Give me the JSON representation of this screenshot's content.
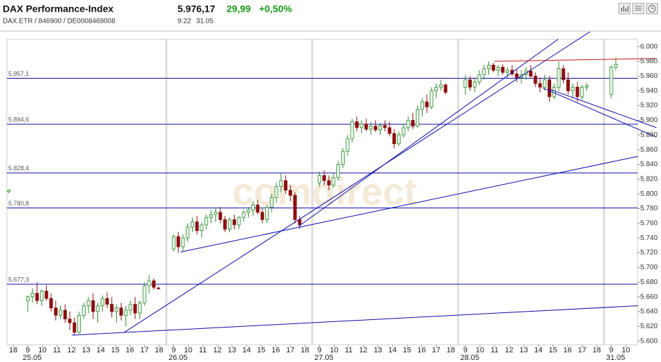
{
  "header": {
    "title": "DAX Performance-Index",
    "subtitle": "DAX.ETR / 846900 / DE0008469008",
    "price": "5.976,17",
    "change": "29,99",
    "change_pct": "+0,50%",
    "time": "9:22",
    "date": "31.05"
  },
  "chart_data": {
    "type": "candlestick",
    "watermark": "comdirect",
    "up_color": "#2e8b2e",
    "down_color": "#8b1010",
    "x": [
      -0.3,
      1.0,
      1.32,
      1.64,
      1.96,
      2.28,
      2.6,
      2.92,
      3.24,
      3.56,
      3.88,
      4.2,
      4.52,
      4.84,
      5.16,
      5.48,
      5.8,
      6.12,
      6.44,
      6.76,
      7.08,
      7.4,
      7.72,
      8.04,
      8.36,
      8.68,
      9.0,
      9.32,
      9.64,
      9.96,
      11.0,
      11.32,
      11.64,
      11.96,
      12.28,
      12.6,
      12.92,
      13.24,
      13.56,
      13.88,
      14.2,
      14.52,
      14.84,
      15.16,
      15.48,
      15.8,
      16.12,
      16.44,
      16.76,
      17.08,
      17.4,
      17.72,
      18.04,
      18.36,
      18.68,
      19.0,
      19.32,
      19.64,
      21.0,
      21.32,
      21.64,
      21.96,
      22.28,
      22.6,
      22.92,
      23.24,
      23.56,
      23.88,
      24.2,
      24.52,
      24.84,
      25.16,
      25.48,
      25.8,
      26.12,
      26.44,
      26.76,
      27.08,
      27.4,
      27.72,
      28.04,
      28.36,
      28.68,
      29.0,
      29.32,
      29.64,
      31.0,
      31.32,
      31.64,
      31.96,
      32.28,
      32.6,
      32.92,
      33.24,
      33.56,
      33.88,
      34.2,
      34.52,
      34.84,
      35.16,
      35.48,
      35.8,
      36.12,
      36.44,
      36.76,
      37.08,
      37.4,
      37.72,
      38.04,
      38.36,
      38.68,
      39.0,
      39.32,
      41.0,
      41.32
    ],
    "open": [
      5803,
      5655,
      5660,
      5665,
      5655,
      5668,
      5658,
      5645,
      5635,
      5642,
      5630,
      5625,
      5612,
      5635,
      5648,
      5655,
      5640,
      5648,
      5658,
      5650,
      5640,
      5645,
      5635,
      5642,
      5650,
      5638,
      5652,
      5675,
      5682,
      5672,
      5725,
      5742,
      5728,
      5740,
      5755,
      5762,
      5750,
      5758,
      5768,
      5772,
      5775,
      5765,
      5752,
      5765,
      5758,
      5768,
      5775,
      5778,
      5785,
      5775,
      5765,
      5782,
      5795,
      5810,
      5818,
      5805,
      5798,
      5765,
      5815,
      5825,
      5818,
      5812,
      5822,
      5840,
      5858,
      5875,
      5898,
      5890,
      5895,
      5888,
      5892,
      5887,
      5893,
      5890,
      5882,
      5868,
      5880,
      5890,
      5900,
      5892,
      5915,
      5925,
      5918,
      5940,
      5945,
      5948,
      5945,
      5955,
      5945,
      5952,
      5962,
      5970,
      5975,
      5968,
      5972,
      5965,
      5968,
      5963,
      5958,
      5962,
      5967,
      5960,
      5950,
      5945,
      5955,
      5932,
      5945,
      5970,
      5955,
      5940,
      5945,
      5932,
      5945,
      5935,
      5972
    ],
    "high": [
      5806,
      5662,
      5672,
      5680,
      5670,
      5676,
      5665,
      5655,
      5648,
      5650,
      5640,
      5632,
      5640,
      5652,
      5660,
      5665,
      5652,
      5662,
      5666,
      5660,
      5650,
      5652,
      5648,
      5655,
      5660,
      5655,
      5680,
      5690,
      5685,
      5674,
      5745,
      5748,
      5745,
      5760,
      5768,
      5770,
      5762,
      5772,
      5778,
      5780,
      5782,
      5770,
      5768,
      5772,
      5770,
      5778,
      5782,
      5790,
      5792,
      5780,
      5785,
      5800,
      5815,
      5828,
      5825,
      5812,
      5802,
      5770,
      5830,
      5832,
      5825,
      5828,
      5845,
      5862,
      5880,
      5902,
      5905,
      5900,
      5902,
      5898,
      5900,
      5896,
      5900,
      5898,
      5888,
      5885,
      5895,
      5905,
      5910,
      5920,
      5930,
      5935,
      5945,
      5950,
      5955,
      5950,
      5962,
      5960,
      5958,
      5968,
      5975,
      5980,
      5978,
      5975,
      5976,
      5972,
      5975,
      5970,
      5968,
      5972,
      5975,
      5965,
      5958,
      5962,
      5960,
      5950,
      5980,
      5975,
      5965,
      5950,
      5952,
      5948,
      5950,
      5975,
      5985
    ],
    "low": [
      5801,
      5640,
      5652,
      5650,
      5648,
      5655,
      5640,
      5628,
      5630,
      5625,
      5615,
      5608,
      5610,
      5630,
      5638,
      5630,
      5625,
      5640,
      5645,
      5632,
      5625,
      5628,
      5620,
      5635,
      5630,
      5630,
      5648,
      5665,
      5670,
      5670,
      5722,
      5720,
      5722,
      5735,
      5748,
      5745,
      5740,
      5752,
      5760,
      5762,
      5760,
      5748,
      5748,
      5752,
      5752,
      5762,
      5768,
      5770,
      5772,
      5760,
      5760,
      5775,
      5788,
      5802,
      5800,
      5790,
      5760,
      5752,
      5810,
      5812,
      5805,
      5808,
      5818,
      5835,
      5852,
      5870,
      5885,
      5882,
      5885,
      5880,
      5884,
      5880,
      5885,
      5878,
      5862,
      5865,
      5876,
      5885,
      5888,
      5890,
      5905,
      5910,
      5915,
      5930,
      5940,
      5935,
      5935,
      5940,
      5938,
      5948,
      5955,
      5962,
      5965,
      5960,
      5962,
      5958,
      5960,
      5952,
      5950,
      5955,
      5958,
      5945,
      5938,
      5940,
      5925,
      5928,
      5940,
      5950,
      5935,
      5930,
      5925,
      5928,
      5940,
      5930,
      5968
    ],
    "close": [
      5805,
      5660,
      5665,
      5655,
      5668,
      5658,
      5645,
      5635,
      5642,
      5630,
      5625,
      5612,
      5635,
      5648,
      5655,
      5640,
      5648,
      5658,
      5650,
      5640,
      5645,
      5635,
      5642,
      5650,
      5638,
      5652,
      5675,
      5682,
      5673,
      5671,
      5742,
      5728,
      5740,
      5755,
      5762,
      5750,
      5758,
      5768,
      5772,
      5775,
      5765,
      5752,
      5765,
      5758,
      5768,
      5775,
      5778,
      5785,
      5775,
      5765,
      5782,
      5795,
      5810,
      5818,
      5805,
      5798,
      5765,
      5758,
      5825,
      5818,
      5812,
      5822,
      5840,
      5858,
      5875,
      5898,
      5890,
      5895,
      5888,
      5892,
      5887,
      5893,
      5890,
      5882,
      5868,
      5880,
      5890,
      5900,
      5892,
      5915,
      5925,
      5918,
      5940,
      5945,
      5948,
      5938,
      5955,
      5945,
      5952,
      5962,
      5970,
      5975,
      5968,
      5972,
      5965,
      5968,
      5963,
      5958,
      5962,
      5967,
      5960,
      5950,
      5945,
      5955,
      5932,
      5945,
      5970,
      5955,
      5940,
      5945,
      5932,
      5945,
      5947,
      5972,
      5976
    ],
    "xlim": [
      -0.43,
      42.8
    ],
    "ylim": [
      5595,
      6010
    ],
    "yticks": [
      {
        "value": 5600,
        "label": "5.600"
      },
      {
        "value": 5620,
        "label": "5.620"
      },
      {
        "value": 5640,
        "label": "5.640"
      },
      {
        "value": 5660,
        "label": "5.660"
      },
      {
        "value": 5680,
        "label": "5.680"
      },
      {
        "value": 5700,
        "label": "5.700"
      },
      {
        "value": 5720,
        "label": "5.720"
      },
      {
        "value": 5740,
        "label": "5.740"
      },
      {
        "value": 5760,
        "label": "5.760"
      },
      {
        "value": 5780,
        "label": "5.780"
      },
      {
        "value": 5800,
        "label": "5.800"
      },
      {
        "value": 5820,
        "label": "5.820"
      },
      {
        "value": 5840,
        "label": "5.840"
      },
      {
        "value": 5860,
        "label": "5.860"
      },
      {
        "value": 5880,
        "label": "5.880"
      },
      {
        "value": 5900,
        "label": "5.900"
      },
      {
        "value": 5920,
        "label": "5.920"
      },
      {
        "value": 5940,
        "label": "5.940"
      },
      {
        "value": 5960,
        "label": "5.960"
      },
      {
        "value": 5980,
        "label": "5.980"
      },
      {
        "value": 6000,
        "label": "6.000"
      }
    ],
    "xticks": [
      {
        "value": 0,
        "label": "18"
      },
      {
        "value": 1,
        "label": "9"
      },
      {
        "value": 2,
        "label": "10"
      },
      {
        "value": 3,
        "label": "11"
      },
      {
        "value": 4,
        "label": "12"
      },
      {
        "value": 5,
        "label": "13"
      },
      {
        "value": 6,
        "label": "14"
      },
      {
        "value": 7,
        "label": "15"
      },
      {
        "value": 8,
        "label": "16"
      },
      {
        "value": 9,
        "label": "17"
      },
      {
        "value": 10,
        "label": "18"
      },
      {
        "value": 11,
        "label": "9"
      },
      {
        "value": 12,
        "label": "10"
      },
      {
        "value": 13,
        "label": "11"
      },
      {
        "value": 14,
        "label": "12"
      },
      {
        "value": 15,
        "label": "13"
      },
      {
        "value": 16,
        "label": "14"
      },
      {
        "value": 17,
        "label": "15"
      },
      {
        "value": 18,
        "label": "16"
      },
      {
        "value": 19,
        "label": "17"
      },
      {
        "value": 20,
        "label": "18"
      },
      {
        "value": 21,
        "label": "9"
      },
      {
        "value": 22,
        "label": "10"
      },
      {
        "value": 23,
        "label": "11"
      },
      {
        "value": 24,
        "label": "12"
      },
      {
        "value": 25,
        "label": "13"
      },
      {
        "value": 26,
        "label": "14"
      },
      {
        "value": 27,
        "label": "15"
      },
      {
        "value": 28,
        "label": "16"
      },
      {
        "value": 29,
        "label": "17"
      },
      {
        "value": 30,
        "label": "18"
      },
      {
        "value": 31,
        "label": "9"
      },
      {
        "value": 32,
        "label": "10"
      },
      {
        "value": 33,
        "label": "11"
      },
      {
        "value": 34,
        "label": "12"
      },
      {
        "value": 35,
        "label": "13"
      },
      {
        "value": 36,
        "label": "14"
      },
      {
        "value": 37,
        "label": "15"
      },
      {
        "value": 38,
        "label": "16"
      },
      {
        "value": 39,
        "label": "17"
      },
      {
        "value": 40,
        "label": "18"
      },
      {
        "value": 41,
        "label": "9"
      },
      {
        "value": 42,
        "label": "10"
      }
    ],
    "xdays": [
      {
        "value": 1.3,
        "label": "25.05"
      },
      {
        "value": 11.3,
        "label": "26.05"
      },
      {
        "value": 21.3,
        "label": "27.05"
      },
      {
        "value": 31.3,
        "label": "28.05"
      },
      {
        "value": 41.3,
        "label": "31.05"
      }
    ],
    "day_breaks": [
      10.5,
      20.5,
      30.5,
      40.5
    ],
    "hline_color": "#0a0aa8",
    "hlines": [
      {
        "value": 5957.1,
        "label": "5.957,1"
      },
      {
        "value": 5894.6,
        "label": "5.894,6"
      },
      {
        "value": 5828.4,
        "label": "5.828,4"
      },
      {
        "value": 5780.8,
        "label": "5.780,8"
      },
      {
        "value": 5677.3,
        "label": "5.677,3"
      }
    ],
    "trendline_color": "#0a0aa8",
    "trendlines": [
      {
        "x": [
          4.03,
          42.84
        ],
        "y": [
          5608,
          5648
        ]
      },
      {
        "x": [
          7.63,
          39.6
        ],
        "y": [
          5612,
          6021
        ]
      },
      {
        "x": [
          11.47,
          42.84
        ],
        "y": [
          5721,
          5851
        ]
      },
      {
        "x": [
          19.57,
          37.35
        ],
        "y": [
          5756,
          6010
        ]
      },
      {
        "x": [
          36.3,
          44.1
        ],
        "y": [
          5944,
          5877
        ]
      },
      {
        "x": [
          36.8,
          44.1
        ],
        "y": [
          5942,
          5890
        ]
      }
    ],
    "resistance_color": "#d01010",
    "resistance": {
      "x": [
        33.0,
        44.1
      ],
      "y": [
        5980,
        5984
      ]
    }
  }
}
